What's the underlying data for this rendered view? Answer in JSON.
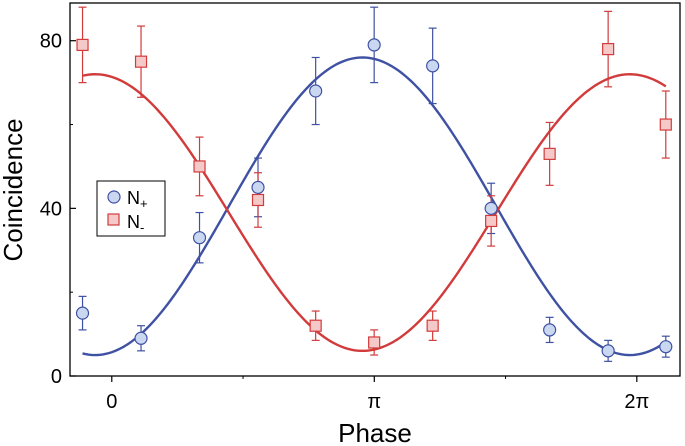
{
  "chart_data": {
    "type": "scatter",
    "xlabel": "Phase",
    "ylabel": "Coincidence",
    "xlim": [
      -0.5,
      6.8
    ],
    "ylim": [
      0,
      89
    ],
    "x_ticks": [
      {
        "value": 0,
        "label": "0"
      },
      {
        "value": 3.1416,
        "label": "π"
      },
      {
        "value": 6.2832,
        "label": "2π"
      }
    ],
    "y_ticks": [
      {
        "value": 0,
        "label": "0"
      },
      {
        "value": 40,
        "label": "40"
      },
      {
        "value": 80,
        "label": "80"
      }
    ],
    "grid": false,
    "legend_position": "middle-left",
    "series": [
      {
        "name": "N+",
        "color": "#3f51a3",
        "fill": "#c9d8f0",
        "marker": "circle",
        "points": [
          {
            "x": -0.35,
            "y": 15,
            "err": 4
          },
          {
            "x": 0.35,
            "y": 9,
            "err": 3
          },
          {
            "x": 1.05,
            "y": 33,
            "err": 6
          },
          {
            "x": 1.75,
            "y": 45,
            "err": 7
          },
          {
            "x": 2.44,
            "y": 68,
            "err": 8
          },
          {
            "x": 3.14,
            "y": 79,
            "err": 9
          },
          {
            "x": 3.84,
            "y": 74,
            "err": 9
          },
          {
            "x": 4.54,
            "y": 40,
            "err": 6
          },
          {
            "x": 5.24,
            "y": 11,
            "err": 3
          },
          {
            "x": 5.94,
            "y": 6,
            "err": 2.5
          },
          {
            "x": 6.63,
            "y": 7,
            "err": 2.5
          }
        ],
        "fit": {
          "offset": 40.5,
          "amplitude": 35.5,
          "period": 6.4,
          "center": 3.0,
          "xrange": [
            -0.35,
            6.63
          ]
        }
      },
      {
        "name": "N-",
        "color": "#d23b3b",
        "fill": "#f6c9c9",
        "marker": "square",
        "points": [
          {
            "x": -0.35,
            "y": 79,
            "err": 9
          },
          {
            "x": 0.35,
            "y": 75,
            "err": 8.5
          },
          {
            "x": 1.05,
            "y": 50,
            "err": 7
          },
          {
            "x": 1.75,
            "y": 42,
            "err": 6.5
          },
          {
            "x": 2.44,
            "y": 12,
            "err": 3.5
          },
          {
            "x": 3.14,
            "y": 8,
            "err": 3
          },
          {
            "x": 3.84,
            "y": 12,
            "err": 3.5
          },
          {
            "x": 4.54,
            "y": 37,
            "err": 6
          },
          {
            "x": 5.24,
            "y": 53,
            "err": 7.5
          },
          {
            "x": 5.94,
            "y": 78,
            "err": 9
          },
          {
            "x": 6.63,
            "y": 60,
            "err": 8
          }
        ],
        "fit": {
          "offset": 39,
          "amplitude": 33,
          "period": 6.4,
          "center": 3.0,
          "xrange": [
            -0.35,
            6.63
          ],
          "invert": true
        }
      }
    ],
    "legend": [
      {
        "label_base": "N",
        "label_sub": "+",
        "series": 0
      },
      {
        "label_base": "N",
        "label_sub": "-",
        "series": 1
      }
    ]
  }
}
